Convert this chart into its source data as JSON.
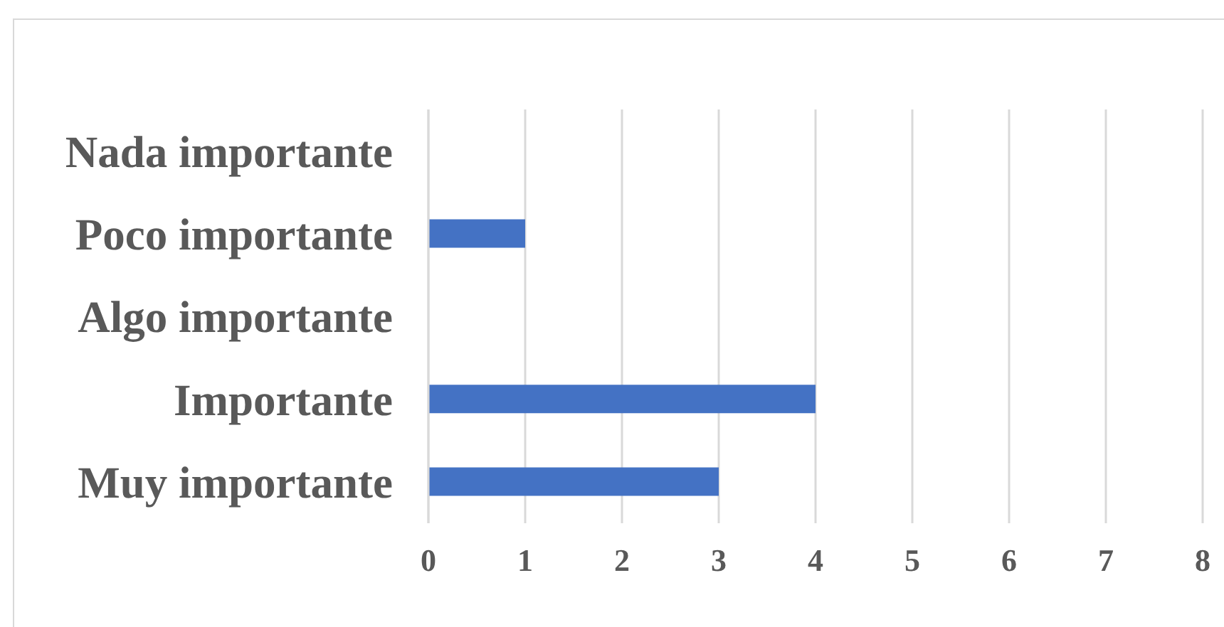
{
  "chart_data": {
    "type": "bar",
    "orientation": "horizontal",
    "categories": [
      "Nada importante",
      "Poco importante",
      "Algo importante",
      "Importante",
      "Muy importante"
    ],
    "values": [
      0,
      1,
      0,
      4,
      3
    ],
    "color": "#4472c4",
    "xlim": [
      0,
      8
    ],
    "xticks": [
      0,
      1,
      2,
      3,
      4,
      5,
      6,
      7,
      8
    ],
    "grid": "x"
  }
}
